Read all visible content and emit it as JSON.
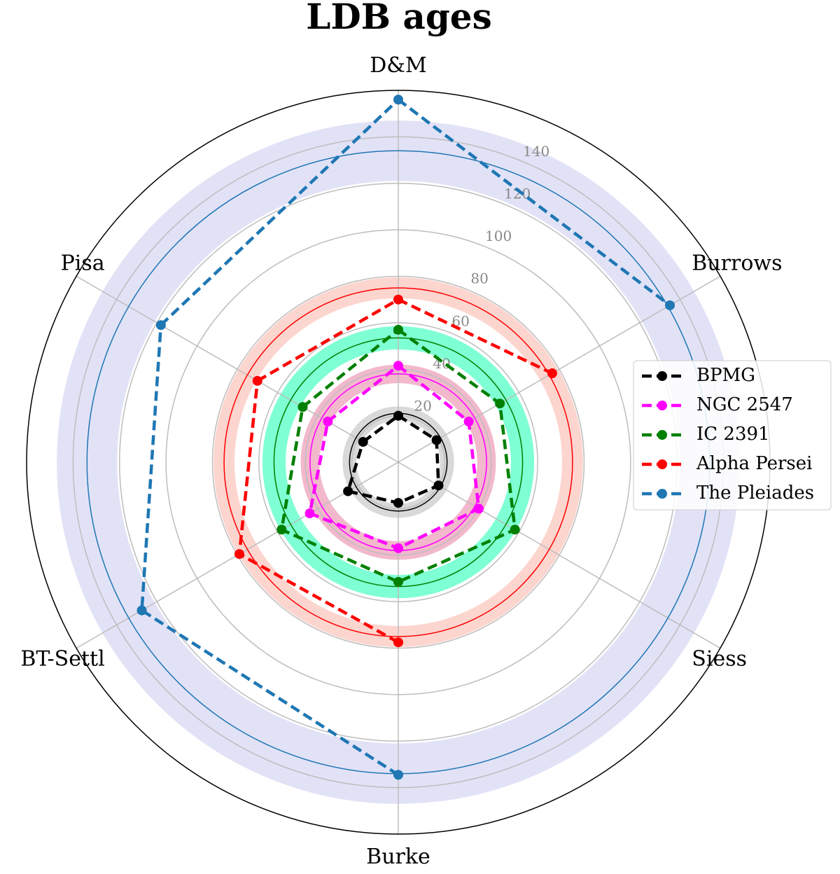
{
  "chart_data": {
    "type": "radar",
    "title": "LDB ages",
    "categories": [
      "D&M",
      "Burrows",
      "Siess",
      "Burke",
      "BT-Settl",
      "Pisa"
    ],
    "ylim": [
      0,
      160
    ],
    "yticks": [
      20,
      40,
      60,
      80,
      100,
      120,
      140
    ],
    "grid": true,
    "legend": "right",
    "series": [
      {
        "name": "BPMG",
        "color": "#000000",
        "band_color": "#d9d9d9",
        "mean": 21,
        "err": 3,
        "values": [
          20,
          19,
          20,
          17.5,
          25,
          17.5
        ]
      },
      {
        "name": "NGC 2547",
        "color": "#ff00ff",
        "band_color": "#f2b8cc",
        "mean": 38,
        "err": 4,
        "values": [
          41.5,
          35,
          40,
          37,
          44,
          35
        ]
      },
      {
        "name": "IC 2391",
        "color": "#008000",
        "band_color": "#7fffd4",
        "mean": 53.5,
        "err": 5,
        "values": [
          57,
          50.5,
          58,
          51.5,
          58,
          47.5
        ]
      },
      {
        "name": "Alpha Persei",
        "color": "#ff0000",
        "band_color": "#fcd5cf",
        "mean": 75,
        "err": 4.5,
        "values": [
          70,
          76.5,
          null,
          77.5,
          79,
          70
        ]
      },
      {
        "name": "The Pleiades",
        "color": "#1f77b4",
        "band_color": "#e2e2f7",
        "mean": 134,
        "err": 13,
        "values": [
          156,
          135,
          null,
          134.5,
          127.5,
          118
        ]
      }
    ]
  }
}
